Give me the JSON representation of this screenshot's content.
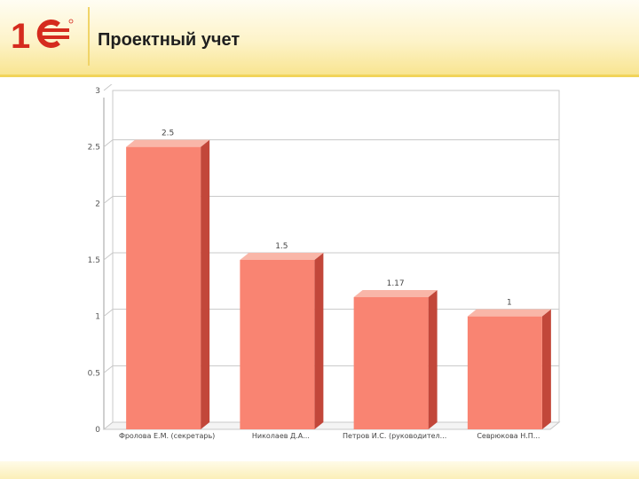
{
  "header": {
    "title": "Проектный учет",
    "logo": "1c-logo"
  },
  "colors": {
    "bar_front": "#f98472",
    "bar_side": "#c2473a",
    "bar_top": "#f9b6a8",
    "logo_red": "#d52b1e",
    "grid": "#c8c8c8"
  },
  "chart_data": {
    "type": "bar",
    "title": "",
    "xlabel": "",
    "ylabel": "",
    "categories": [
      "Фролова Е.М. (секретарь)",
      "Николаев Д.А...",
      "Петров И.С. (руководител...",
      "Севрюкова Н.П..."
    ],
    "values": [
      2.5,
      1.5,
      1.17,
      1
    ],
    "data_labels": [
      "2.5",
      "1.5",
      "1.17",
      "1"
    ],
    "y_ticks": [
      "0",
      "0.5",
      "1",
      "1.5",
      "2",
      "2.5",
      "3"
    ],
    "ylim": [
      0,
      3
    ],
    "grid": true,
    "legend": "none"
  }
}
